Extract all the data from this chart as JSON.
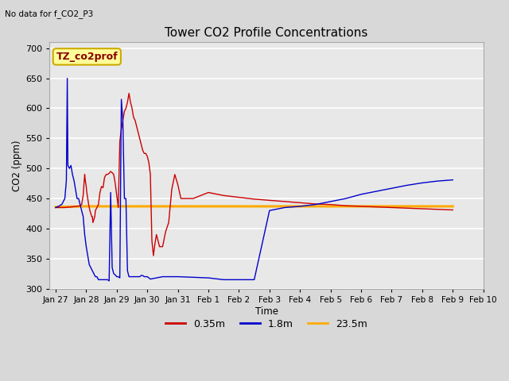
{
  "title": "Tower CO2 Profile Concentrations",
  "subtitle": "No data for f_CO2_P3",
  "xlabel": "Time",
  "ylabel": "CO2 (ppm)",
  "ylim": [
    300,
    710
  ],
  "yticks": [
    300,
    350,
    400,
    450,
    500,
    550,
    600,
    650,
    700
  ],
  "bg_color": "#d8d8d8",
  "plot_bg_color": "#e8e8e8",
  "legend_label_box": "TZ_co2prof",
  "legend_box_color": "#ffff99",
  "legend_box_border": "#ccaa00",
  "series": {
    "red": {
      "label": "0.35m",
      "color": "#cc0000",
      "x": [
        0.0,
        0.3,
        0.5,
        0.7,
        0.8,
        0.85,
        0.9,
        0.92,
        0.95,
        0.97,
        1.0,
        1.02,
        1.05,
        1.08,
        1.1,
        1.12,
        1.15,
        1.18,
        1.2,
        1.22,
        1.25,
        1.28,
        1.3,
        1.35,
        1.4,
        1.45,
        1.5,
        1.55,
        1.6,
        1.65,
        1.7,
        1.75,
        1.8,
        1.85,
        1.9,
        1.95,
        2.0,
        2.05,
        2.1,
        2.15,
        2.2,
        2.25,
        2.3,
        2.35,
        2.4,
        2.45,
        2.5,
        2.55,
        2.6,
        2.65,
        2.7,
        2.75,
        2.8,
        2.85,
        2.9,
        2.95,
        3.0,
        3.05,
        3.1,
        3.15,
        3.2,
        3.25,
        3.3,
        3.4,
        3.5,
        3.6,
        3.7,
        3.8,
        3.9,
        4.0,
        4.1,
        4.5,
        5.0,
        5.5,
        6.0,
        6.5,
        7.0,
        7.5,
        8.0,
        8.5,
        9.0,
        9.5,
        10.0,
        10.5,
        11.0,
        11.5,
        12.0,
        12.5,
        13.0
      ],
      "y": [
        435,
        435,
        436,
        437,
        438,
        440,
        455,
        470,
        490,
        480,
        470,
        460,
        450,
        440,
        435,
        430,
        425,
        420,
        420,
        410,
        415,
        420,
        430,
        435,
        440,
        460,
        470,
        468,
        485,
        490,
        490,
        492,
        495,
        493,
        490,
        475,
        455,
        435,
        545,
        565,
        580,
        595,
        600,
        610,
        625,
        610,
        600,
        585,
        580,
        570,
        560,
        550,
        540,
        530,
        525,
        525,
        520,
        510,
        490,
        380,
        355,
        375,
        390,
        370,
        370,
        395,
        410,
        465,
        490,
        473,
        450,
        450,
        460,
        455,
        452,
        449,
        447,
        445,
        443,
        441,
        440,
        438,
        437,
        436,
        435,
        434,
        433,
        432,
        431
      ]
    },
    "blue": {
      "label": "1.8m",
      "color": "#0000cc",
      "x": [
        0.0,
        0.05,
        0.1,
        0.15,
        0.2,
        0.25,
        0.3,
        0.35,
        0.38,
        0.4,
        0.45,
        0.5,
        0.55,
        0.6,
        0.65,
        0.7,
        0.75,
        0.8,
        0.85,
        0.9,
        0.95,
        1.0,
        1.05,
        1.1,
        1.15,
        1.2,
        1.25,
        1.3,
        1.35,
        1.4,
        1.45,
        1.5,
        1.55,
        1.6,
        1.65,
        1.7,
        1.75,
        1.8,
        1.85,
        1.9,
        1.95,
        2.0,
        2.05,
        2.1,
        2.15,
        2.2,
        2.25,
        2.3,
        2.35,
        2.4,
        2.45,
        2.5,
        2.55,
        2.6,
        2.65,
        2.7,
        2.75,
        2.8,
        2.85,
        2.9,
        2.95,
        3.0,
        3.05,
        3.1,
        3.5,
        4.0,
        5.0,
        5.5,
        6.0,
        6.5,
        7.0,
        7.5,
        8.0,
        8.5,
        9.0,
        9.5,
        10.0,
        10.5,
        11.0,
        11.5,
        12.0,
        12.5,
        13.0
      ],
      "y": [
        435,
        436,
        437,
        439,
        440,
        445,
        450,
        480,
        650,
        505,
        500,
        505,
        490,
        480,
        465,
        450,
        450,
        440,
        430,
        420,
        390,
        370,
        355,
        340,
        335,
        330,
        325,
        320,
        320,
        315,
        315,
        315,
        315,
        315,
        315,
        315,
        313,
        460,
        335,
        325,
        323,
        320,
        320,
        318,
        615,
        578,
        450,
        450,
        330,
        320,
        320,
        320,
        320,
        320,
        320,
        320,
        320,
        322,
        322,
        320,
        320,
        320,
        318,
        316,
        320,
        320,
        318,
        315,
        315,
        315,
        430,
        435,
        437,
        440,
        445,
        450,
        457,
        462,
        467,
        472,
        476,
        479,
        481
      ]
    },
    "orange": {
      "label": "23.5m",
      "color": "#ffaa00",
      "x": [
        0.0,
        1.0,
        2.0,
        2.5,
        3.0,
        3.5,
        4.0,
        4.5,
        5.0,
        5.5,
        6.0,
        6.5,
        7.0,
        7.5,
        8.0,
        8.5,
        9.0,
        9.5,
        10.0,
        10.5,
        11.0,
        11.5,
        12.0,
        12.5,
        13.0
      ],
      "y": [
        436,
        437,
        437,
        437,
        437,
        437,
        437,
        437,
        437,
        437,
        437,
        437,
        437,
        437,
        437,
        437,
        437,
        437,
        437,
        437,
        437,
        437,
        437,
        437,
        437
      ]
    }
  },
  "xtick_labels": [
    "Jan 27",
    "Jan 28",
    "Jan 29",
    "Jan 30",
    "Jan 31",
    "Feb 1",
    "Feb 2",
    "Feb 3",
    "Feb 4",
    "Feb 5",
    "Feb 6",
    "Feb 7",
    "Feb 8",
    "Feb 9",
    "Feb 10"
  ],
  "xtick_positions": [
    0,
    1,
    2,
    3,
    4,
    5,
    6,
    7,
    8,
    9,
    10,
    11,
    12,
    13,
    14
  ],
  "xlim": [
    -0.2,
    14.0
  ]
}
